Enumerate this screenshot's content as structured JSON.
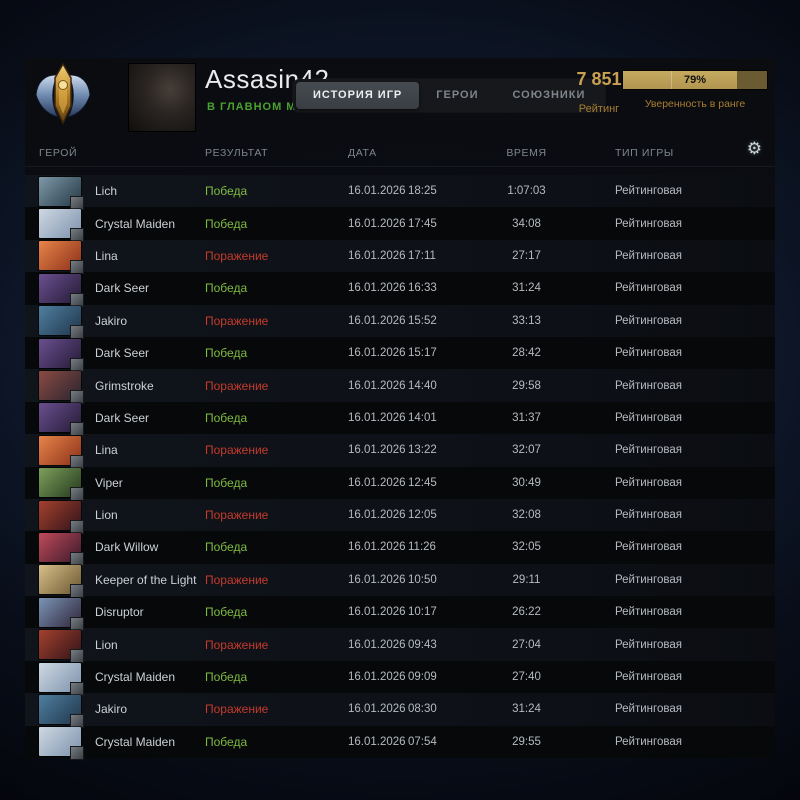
{
  "profile": {
    "username": "Assasin42",
    "status": "В ГЛАВНОМ МЕНЮ"
  },
  "tabs": [
    {
      "id": "history",
      "label": "ИСТОРИЯ ИГР",
      "active": true
    },
    {
      "id": "heroes",
      "label": "ГЕРОИ",
      "active": false
    },
    {
      "id": "allies",
      "label": "СОЮЗНИКИ",
      "active": false
    }
  ],
  "rating": {
    "value": "7 851",
    "label": "Рейтинг"
  },
  "rank_confidence": {
    "percent": 79,
    "percent_label": "79%",
    "label": "Уверенность в ранге"
  },
  "icons": {
    "settings_glyph": "⚙",
    "settings_name": "gear-icon",
    "rank_medal_name": "rank-medal-icon"
  },
  "colors": {
    "win": "#7fbb42",
    "loss": "#c43b2a",
    "gold": "#c9a052",
    "accent_green": "#49a22d"
  },
  "table": {
    "columns": {
      "hero": "ГЕРОЙ",
      "result": "РЕЗУЛЬТАТ",
      "date": "ДАТА",
      "time": "ВРЕМЯ",
      "type": "ТИП ИГРЫ"
    },
    "rows": [
      {
        "hero": "Lich",
        "result": "Победа",
        "win": true,
        "date": "16.01.2026",
        "time": "18:25",
        "duration": "1:07:03",
        "type": "Рейтинговая",
        "portrait_colors": [
          "#7e99a8",
          "#243845"
        ]
      },
      {
        "hero": "Crystal Maiden",
        "result": "Победа",
        "win": true,
        "date": "16.01.2026",
        "time": "17:45",
        "duration": "34:08",
        "type": "Рейтинговая",
        "portrait_colors": [
          "#cfd8e2",
          "#7d92ad"
        ]
      },
      {
        "hero": "Lina",
        "result": "Поражение",
        "win": false,
        "date": "16.01.2026",
        "time": "17:11",
        "duration": "27:17",
        "type": "Рейтинговая",
        "portrait_colors": [
          "#e8854a",
          "#8a3018"
        ]
      },
      {
        "hero": "Dark Seer",
        "result": "Победа",
        "win": true,
        "date": "16.01.2026",
        "time": "16:33",
        "duration": "31:24",
        "type": "Рейтинговая",
        "portrait_colors": [
          "#6b4f8f",
          "#241a35"
        ]
      },
      {
        "hero": "Jakiro",
        "result": "Поражение",
        "win": false,
        "date": "16.01.2026",
        "time": "15:52",
        "duration": "33:13",
        "type": "Рейтинговая",
        "portrait_colors": [
          "#4f7fa0",
          "#20354a"
        ]
      },
      {
        "hero": "Dark Seer",
        "result": "Победа",
        "win": true,
        "date": "16.01.2026",
        "time": "15:17",
        "duration": "28:42",
        "type": "Рейтинговая",
        "portrait_colors": [
          "#6b4f8f",
          "#241a35"
        ]
      },
      {
        "hero": "Grimstroke",
        "result": "Поражение",
        "win": false,
        "date": "16.01.2026",
        "time": "14:40",
        "duration": "29:58",
        "type": "Рейтинговая",
        "portrait_colors": [
          "#8a4b42",
          "#2a2430"
        ]
      },
      {
        "hero": "Dark Seer",
        "result": "Победа",
        "win": true,
        "date": "16.01.2026",
        "time": "14:01",
        "duration": "31:37",
        "type": "Рейтинговая",
        "portrait_colors": [
          "#6b4f8f",
          "#241a35"
        ]
      },
      {
        "hero": "Lina",
        "result": "Поражение",
        "win": false,
        "date": "16.01.2026",
        "time": "13:22",
        "duration": "32:07",
        "type": "Рейтинговая",
        "portrait_colors": [
          "#e8854a",
          "#8a3018"
        ]
      },
      {
        "hero": "Viper",
        "result": "Победа",
        "win": true,
        "date": "16.01.2026",
        "time": "12:45",
        "duration": "30:49",
        "type": "Рейтинговая",
        "portrait_colors": [
          "#7da05a",
          "#24381e"
        ]
      },
      {
        "hero": "Lion",
        "result": "Поражение",
        "win": false,
        "date": "16.01.2026",
        "time": "12:05",
        "duration": "32:08",
        "type": "Рейтинговая",
        "portrait_colors": [
          "#a5412f",
          "#301318"
        ]
      },
      {
        "hero": "Dark Willow",
        "result": "Победа",
        "win": true,
        "date": "16.01.2026",
        "time": "11:26",
        "duration": "32:05",
        "type": "Рейтинговая",
        "portrait_colors": [
          "#c04a5a",
          "#3a1a2a"
        ]
      },
      {
        "hero": "Keeper of the Light",
        "result": "Поражение",
        "win": false,
        "date": "16.01.2026",
        "time": "10:50",
        "duration": "29:11",
        "type": "Рейтинговая",
        "portrait_colors": [
          "#d8c08a",
          "#6a5530"
        ]
      },
      {
        "hero": "Disruptor",
        "result": "Победа",
        "win": true,
        "date": "16.01.2026",
        "time": "10:17",
        "duration": "26:22",
        "type": "Рейтинговая",
        "portrait_colors": [
          "#7a95b5",
          "#30243a"
        ]
      },
      {
        "hero": "Lion",
        "result": "Поражение",
        "win": false,
        "date": "16.01.2026",
        "time": "09:43",
        "duration": "27:04",
        "type": "Рейтинговая",
        "portrait_colors": [
          "#a5412f",
          "#301318"
        ]
      },
      {
        "hero": "Crystal Maiden",
        "result": "Победа",
        "win": true,
        "date": "16.01.2026",
        "time": "09:09",
        "duration": "27:40",
        "type": "Рейтинговая",
        "portrait_colors": [
          "#cfd8e2",
          "#7d92ad"
        ]
      },
      {
        "hero": "Jakiro",
        "result": "Поражение",
        "win": false,
        "date": "16.01.2026",
        "time": "08:30",
        "duration": "31:24",
        "type": "Рейтинговая",
        "portrait_colors": [
          "#4f7fa0",
          "#20354a"
        ]
      },
      {
        "hero": "Crystal Maiden",
        "result": "Победа",
        "win": true,
        "date": "16.01.2026",
        "time": "07:54",
        "duration": "29:55",
        "type": "Рейтинговая",
        "portrait_colors": [
          "#cfd8e2",
          "#7d92ad"
        ]
      }
    ]
  }
}
